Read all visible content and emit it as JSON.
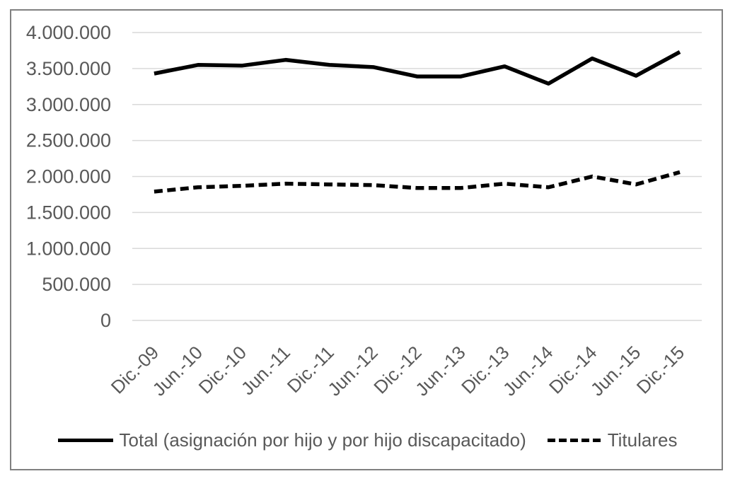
{
  "figure": {
    "background": "#ffffff",
    "frame_border_color": "#808080"
  },
  "chart_data": {
    "type": "line",
    "title": "",
    "categories": [
      "Dic.-09",
      "Jun.-10",
      "Dic.-10",
      "Jun.-11",
      "Dic.-11",
      "Jun.-12",
      "Dic.-12",
      "Jun.-13",
      "Dic.-13",
      "Jun.-14",
      "Dic.-14",
      "Jun.-15",
      "Dic.-15"
    ],
    "series": [
      {
        "name": "Total (asignación por hijo y por hijo discapacitado)",
        "line_style": "solid",
        "color": "#000000",
        "values": [
          3430000,
          3550000,
          3540000,
          3620000,
          3550000,
          3520000,
          3390000,
          3390000,
          3530000,
          3290000,
          3640000,
          3400000,
          3730000
        ]
      },
      {
        "name": "Titulares",
        "line_style": "dashed",
        "color": "#000000",
        "values": [
          1790000,
          1850000,
          1870000,
          1900000,
          1890000,
          1880000,
          1840000,
          1840000,
          1900000,
          1850000,
          2000000,
          1890000,
          2060000
        ]
      }
    ],
    "y_axis": {
      "min": 0,
      "max": 4000000,
      "step": 500000,
      "tick_labels": [
        "0",
        "500.000",
        "1.000.000",
        "1.500.000",
        "2.000.000",
        "2.500.000",
        "3.000.000",
        "3.500.000",
        "4.000.000"
      ]
    },
    "x_axis": {
      "tick_label_rotation_deg": -45
    },
    "grid": "horizontal",
    "legend_position": "bottom",
    "colors": {
      "axis_text": "#595959",
      "gridline": "#d9d9d9"
    }
  }
}
